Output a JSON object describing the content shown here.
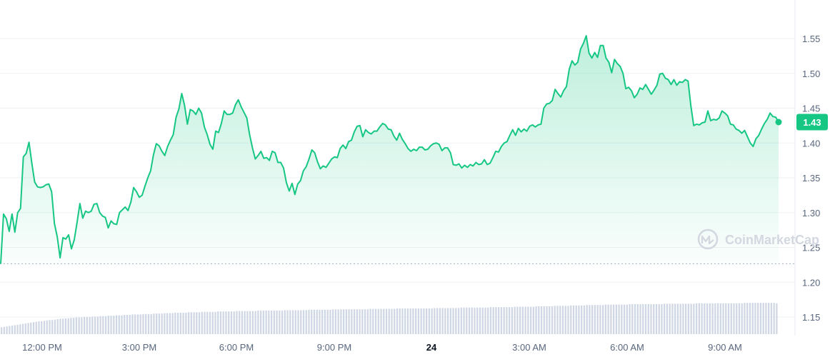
{
  "chart_data": {
    "type": "area",
    "y_ticks": [
      1.55,
      1.5,
      1.45,
      1.4,
      1.35,
      1.3,
      1.25,
      1.2,
      1.15
    ],
    "x_ticks": [
      "12:00 PM",
      "3:00 PM",
      "6:00 PM",
      "9:00 PM",
      "24",
      "3:00 AM",
      "6:00 AM",
      "9:00 AM"
    ],
    "ylim": [
      1.13,
      1.565
    ],
    "baseline_value": 1.2265,
    "current_value": "1.43",
    "watermark": "CoinMarketCap",
    "colors": {
      "line": "#16c784",
      "volume": "#cfd6e4",
      "badge": "#16c784"
    },
    "series": [
      {
        "values": [
          1.2265,
          1.298,
          1.291,
          1.273,
          1.298,
          1.272,
          1.3,
          1.306,
          1.38,
          1.385,
          1.401,
          1.371,
          1.344,
          1.337,
          1.336,
          1.337,
          1.34,
          1.341,
          1.33,
          1.284,
          1.265,
          1.235,
          1.264,
          1.262,
          1.268,
          1.248,
          1.261,
          1.286,
          1.313,
          1.292,
          1.302,
          1.3,
          1.302,
          1.312,
          1.313,
          1.3,
          1.295,
          1.293,
          1.278,
          1.288,
          1.284,
          1.283,
          1.3,
          1.304,
          1.308,
          1.303,
          1.315,
          1.336,
          1.33,
          1.322,
          1.325,
          1.338,
          1.35,
          1.36,
          1.383,
          1.399,
          1.396,
          1.388,
          1.382,
          1.395,
          1.404,
          1.412,
          1.437,
          1.449,
          1.471,
          1.454,
          1.427,
          1.448,
          1.446,
          1.441,
          1.45,
          1.443,
          1.423,
          1.412,
          1.398,
          1.391,
          1.417,
          1.415,
          1.428,
          1.446,
          1.441,
          1.441,
          1.443,
          1.455,
          1.462,
          1.452,
          1.444,
          1.436,
          1.412,
          1.393,
          1.377,
          1.382,
          1.388,
          1.378,
          1.379,
          1.375,
          1.388,
          1.386,
          1.372,
          1.372,
          1.364,
          1.343,
          1.331,
          1.342,
          1.326,
          1.341,
          1.346,
          1.36,
          1.366,
          1.377,
          1.39,
          1.386,
          1.373,
          1.363,
          1.367,
          1.365,
          1.371,
          1.377,
          1.38,
          1.379,
          1.392,
          1.397,
          1.392,
          1.402,
          1.404,
          1.416,
          1.424,
          1.425,
          1.409,
          1.419,
          1.415,
          1.413,
          1.417,
          1.417,
          1.423,
          1.428,
          1.426,
          1.42,
          1.419,
          1.41,
          1.404,
          1.414,
          1.405,
          1.399,
          1.392,
          1.388,
          1.391,
          1.389,
          1.394,
          1.394,
          1.39,
          1.391,
          1.396,
          1.399,
          1.4,
          1.398,
          1.389,
          1.393,
          1.393,
          1.386,
          1.369,
          1.368,
          1.37,
          1.364,
          1.368,
          1.365,
          1.369,
          1.367,
          1.372,
          1.369,
          1.37,
          1.376,
          1.369,
          1.371,
          1.379,
          1.388,
          1.387,
          1.395,
          1.4,
          1.402,
          1.411,
          1.419,
          1.411,
          1.421,
          1.416,
          1.42,
          1.417,
          1.424,
          1.426,
          1.423,
          1.426,
          1.427,
          1.45,
          1.456,
          1.457,
          1.461,
          1.477,
          1.471,
          1.466,
          1.475,
          1.481,
          1.506,
          1.518,
          1.512,
          1.516,
          1.535,
          1.543,
          1.554,
          1.529,
          1.522,
          1.53,
          1.523,
          1.54,
          1.54,
          1.522,
          1.516,
          1.501,
          1.52,
          1.514,
          1.51,
          1.5,
          1.478,
          1.48,
          1.475,
          1.465,
          1.47,
          1.479,
          1.477,
          1.484,
          1.477,
          1.47,
          1.476,
          1.483,
          1.499,
          1.5,
          1.493,
          1.491,
          1.484,
          1.491,
          1.483,
          1.488,
          1.487,
          1.491,
          1.489,
          1.453,
          1.425,
          1.427,
          1.426,
          1.429,
          1.43,
          1.446,
          1.432,
          1.434,
          1.433,
          1.436,
          1.446,
          1.443,
          1.439,
          1.427,
          1.426,
          1.42,
          1.418,
          1.414,
          1.418,
          1.409,
          1.4,
          1.395,
          1.406,
          1.411,
          1.42,
          1.428,
          1.434,
          1.443,
          1.438,
          1.437,
          1.43
        ]
      },
      {
        "name": "volume",
        "values": [
          0.016,
          0.017,
          0.018,
          0.019,
          0.02,
          0.021,
          0.022,
          0.023,
          0.024,
          0.025,
          0.026,
          0.027,
          0.028,
          0.029,
          0.03,
          0.03,
          0.031,
          0.032,
          0.033,
          0.033,
          0.034,
          0.035,
          0.036,
          0.036,
          0.037,
          0.037,
          0.038,
          0.038,
          0.039,
          0.039,
          0.039,
          0.04,
          0.04,
          0.04,
          0.041,
          0.041,
          0.041,
          0.042,
          0.042,
          0.042,
          0.043,
          0.043,
          0.043,
          0.044,
          0.044,
          0.044,
          0.045,
          0.045,
          0.045,
          0.046,
          0.046,
          0.046,
          0.046,
          0.047,
          0.047,
          0.047,
          0.047,
          0.048,
          0.048,
          0.048,
          0.048,
          0.049,
          0.049,
          0.049,
          0.049,
          0.05,
          0.05,
          0.05,
          0.05,
          0.05,
          0.051,
          0.051,
          0.051,
          0.051,
          0.051,
          0.052,
          0.052,
          0.052,
          0.052,
          0.052,
          0.052,
          0.053,
          0.053,
          0.053,
          0.053,
          0.053,
          0.053,
          0.053,
          0.054,
          0.054,
          0.054,
          0.054,
          0.054,
          0.054,
          0.054,
          0.054,
          0.055,
          0.055,
          0.055,
          0.055,
          0.055,
          0.055,
          0.055,
          0.055,
          0.055,
          0.055,
          0.056,
          0.056,
          0.056,
          0.056,
          0.056,
          0.056,
          0.056,
          0.056,
          0.056,
          0.057,
          0.057,
          0.057,
          0.057,
          0.057,
          0.057,
          0.057,
          0.057,
          0.057,
          0.058,
          0.058,
          0.058,
          0.058,
          0.058,
          0.058,
          0.058,
          0.058,
          0.058,
          0.058,
          0.058,
          0.058,
          0.058,
          0.058,
          0.059,
          0.059,
          0.059,
          0.059,
          0.059,
          0.059,
          0.059,
          0.059,
          0.059,
          0.059,
          0.06,
          0.06,
          0.06,
          0.06,
          0.06,
          0.06,
          0.06,
          0.06,
          0.06,
          0.06,
          0.06,
          0.06,
          0.06,
          0.06,
          0.061,
          0.061,
          0.061,
          0.061,
          0.061,
          0.061,
          0.061,
          0.061,
          0.061,
          0.061,
          0.062,
          0.062,
          0.062,
          0.062,
          0.062,
          0.062,
          0.062,
          0.062,
          0.062,
          0.062,
          0.062,
          0.063,
          0.063,
          0.063,
          0.063,
          0.063,
          0.063,
          0.063,
          0.063,
          0.063,
          0.064,
          0.064,
          0.064,
          0.064,
          0.064,
          0.064,
          0.064,
          0.064,
          0.065,
          0.065,
          0.065,
          0.065,
          0.065,
          0.065,
          0.065,
          0.066,
          0.066,
          0.066,
          0.066,
          0.066,
          0.066,
          0.067,
          0.067,
          0.067,
          0.067,
          0.067,
          0.067,
          0.068,
          0.068,
          0.068,
          0.068,
          0.068,
          0.068,
          0.068,
          0.069,
          0.069,
          0.069,
          0.069,
          0.069,
          0.069,
          0.069,
          0.069,
          0.069,
          0.07,
          0.07,
          0.07,
          0.07,
          0.07,
          0.07,
          0.07,
          0.07,
          0.07,
          0.07,
          0.07,
          0.07,
          0.07,
          0.071,
          0.071,
          0.071,
          0.071,
          0.071,
          0.071,
          0.071,
          0.071,
          0.071,
          0.071,
          0.071,
          0.071,
          0.072,
          0.072,
          0.072,
          0.072,
          0.072,
          0.072,
          0.072,
          0.072,
          0.072,
          0.072,
          0.072,
          0.072,
          0.072,
          0.072,
          0.072,
          0.072,
          0.072,
          0.072,
          0.073,
          0.073,
          0.073,
          0.073,
          0.073,
          0.073,
          0.073,
          0.073,
          0.073,
          0.073,
          0.073,
          0.073,
          0.072
        ]
      }
    ]
  }
}
